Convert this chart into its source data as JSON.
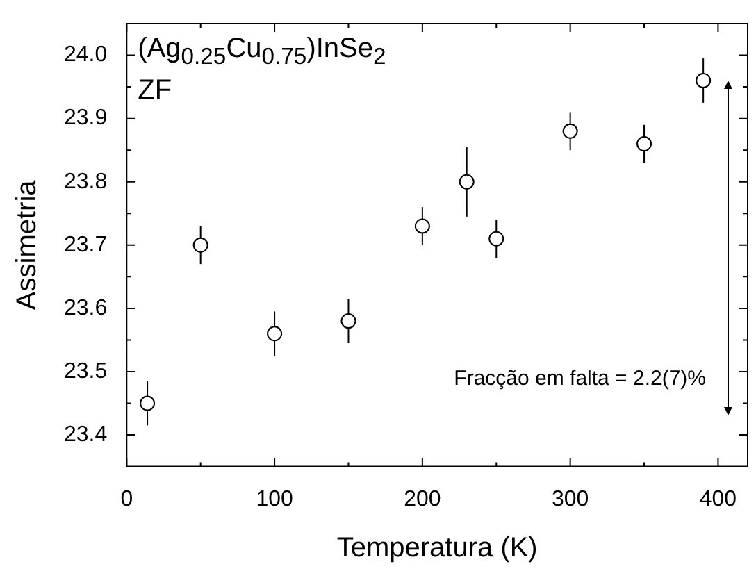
{
  "chart_data": {
    "type": "scatter",
    "xlabel": "Temperatura (K)",
    "ylabel": "Assimetria",
    "annotations": [
      "(Ag$_{0.25}$Cu$_{0.75}$)InSe$_{2}$",
      "ZF",
      "Fracção em falta = 2.2(7)%"
    ],
    "x": [
      14,
      50,
      100,
      150,
      200,
      230,
      250,
      300,
      350,
      390
    ],
    "values": [
      23.45,
      23.7,
      23.56,
      23.58,
      23.73,
      23.8,
      23.71,
      23.88,
      23.86,
      23.96
    ],
    "errors": [
      0.035,
      0.03,
      0.035,
      0.035,
      0.03,
      0.055,
      0.03,
      0.03,
      0.03,
      0.035
    ],
    "color": "#000000",
    "marker": "circle",
    "xlim": [
      0,
      420
    ],
    "xticks": [
      0,
      {
        "value": 50,
        "label": null
      },
      100,
      {
        "value": 150,
        "label": null
      },
      200,
      {
        "value": 250,
        "label": null
      },
      300,
      {
        "value": 350,
        "label": null
      },
      400
    ],
    "ylim": [
      23.35,
      24.05
    ],
    "yticks": [
      23.4,
      {
        "value": 23.45,
        "label": null
      },
      23.5,
      {
        "value": 23.55,
        "label": null
      },
      23.6,
      {
        "value": 23.65,
        "label": null
      },
      23.7,
      {
        "value": 23.75,
        "label": null
      },
      23.8,
      {
        "value": 23.85,
        "label": null
      },
      23.9,
      {
        "value": 23.95,
        "label": null
      },
      {
        "value": 24,
        "label": "24.0"
      }
    ]
  }
}
